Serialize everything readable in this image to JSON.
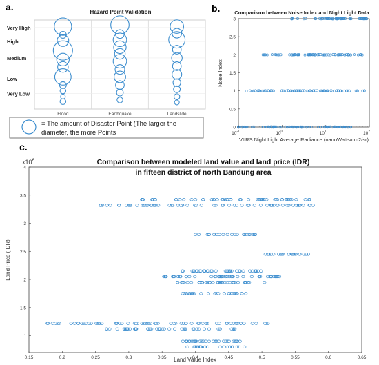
{
  "panel_labels": {
    "a": "a.",
    "b": "b.",
    "c": "c."
  },
  "chart_data": [
    {
      "type": "bubble",
      "title": "Hazard Point Validation",
      "categories": [
        "Flood",
        "Earthquake",
        "Landslide"
      ],
      "y_levels": [
        "Very Low",
        "Low",
        "Medium",
        "High",
        "Very High"
      ],
      "grid": true,
      "color": "#3f8fcf",
      "bubbles": [
        {
          "category": "Flood",
          "y": 5.0,
          "size": 0.9
        },
        {
          "category": "Flood",
          "y": 4.5,
          "size": 0.35
        },
        {
          "category": "Flood",
          "y": 4.15,
          "size": 0.6
        },
        {
          "category": "Flood",
          "y": 3.55,
          "size": 1.0
        },
        {
          "category": "Flood",
          "y": 3.0,
          "size": 0.65
        },
        {
          "category": "Flood",
          "y": 2.55,
          "size": 0.55
        },
        {
          "category": "Flood",
          "y": 1.95,
          "size": 0.85
        },
        {
          "category": "Flood",
          "y": 1.45,
          "size": 0.35
        },
        {
          "category": "Flood",
          "y": 1.1,
          "size": 0.3
        },
        {
          "category": "Flood",
          "y": 0.75,
          "size": 0.25
        },
        {
          "category": "Flood",
          "y": 0.45,
          "size": 0.3
        },
        {
          "category": "Earthquake",
          "y": 5.1,
          "size": 0.95
        },
        {
          "category": "Earthquake",
          "y": 4.55,
          "size": 0.45
        },
        {
          "category": "Earthquake",
          "y": 4.2,
          "size": 0.7
        },
        {
          "category": "Earthquake",
          "y": 3.75,
          "size": 0.65
        },
        {
          "category": "Earthquake",
          "y": 3.35,
          "size": 0.55
        },
        {
          "category": "Earthquake",
          "y": 2.9,
          "size": 0.7
        },
        {
          "category": "Earthquake",
          "y": 2.4,
          "size": 0.5
        },
        {
          "category": "Earthquake",
          "y": 1.95,
          "size": 0.6
        },
        {
          "category": "Earthquake",
          "y": 1.45,
          "size": 0.45
        },
        {
          "category": "Earthquake",
          "y": 1.0,
          "size": 0.35
        },
        {
          "category": "Earthquake",
          "y": 0.55,
          "size": 0.3
        },
        {
          "category": "Landslide",
          "y": 5.0,
          "size": 0.7
        },
        {
          "category": "Landslide",
          "y": 4.6,
          "size": 0.5
        },
        {
          "category": "Landslide",
          "y": 4.2,
          "size": 0.85
        },
        {
          "category": "Landslide",
          "y": 3.6,
          "size": 0.45
        },
        {
          "category": "Landslide",
          "y": 3.1,
          "size": 0.55
        },
        {
          "category": "Landslide",
          "y": 2.6,
          "size": 0.45
        },
        {
          "category": "Landslide",
          "y": 2.1,
          "size": 0.5
        },
        {
          "category": "Landslide",
          "y": 1.6,
          "size": 0.4
        },
        {
          "category": "Landslide",
          "y": 1.2,
          "size": 0.35
        },
        {
          "category": "Landslide",
          "y": 0.75,
          "size": 0.3
        },
        {
          "category": "Landslide",
          "y": 0.4,
          "size": 0.25
        }
      ],
      "legend": {
        "line1": "= The amount of Disaster Point (The larger the",
        "line2": "diameter, the more Points"
      }
    },
    {
      "type": "scatter",
      "title": "Comparison between Noise Index and Night Light Data",
      "xlabel": "VIIRS Night Light Average Radiance (nanoWatts/cm2/sr)",
      "ylabel": "Noise Index",
      "xscale": "log",
      "xlim": [
        0.1,
        100
      ],
      "ylim": [
        0,
        3
      ],
      "xticks": [
        {
          "value": 0.1,
          "base": "10",
          "exp": "-1"
        },
        {
          "value": 1,
          "base": "10",
          "exp": "0"
        },
        {
          "value": 10,
          "base": "10",
          "exp": "1"
        },
        {
          "value": 100,
          "base": "10",
          "exp": "2"
        }
      ],
      "yticks": [
        "0",
        "0.5",
        "1",
        "1.5",
        "2",
        "2.5",
        "3"
      ],
      "color": "#3f8fcf",
      "grid": false,
      "series": [
        {
          "y": 3,
          "x_min": 1.5,
          "x_max": 90,
          "dense_from": 6,
          "count": 60
        },
        {
          "y": 2,
          "x_min": 0.3,
          "x_max": 70,
          "dense_from": 1.5,
          "count": 65
        },
        {
          "y": 1,
          "x_min": 0.15,
          "x_max": 80,
          "dense_from": 0.5,
          "count": 75
        },
        {
          "y": 0,
          "x_min": 0.1,
          "x_max": 40,
          "dense_from": 0.1,
          "count": 110
        }
      ]
    },
    {
      "type": "scatter",
      "title": "Comparison between modeled land value and land price (IDR)",
      "subtitle": "in fifteen district of north Bandung area",
      "xlabel": "Land Value Index",
      "ylabel": "Land Price (IDR)",
      "multiplier_base": "x10",
      "multiplier_exp": "6",
      "xlim": [
        0.15,
        0.65
      ],
      "ylim": [
        0.7,
        4.0
      ],
      "xticks": [
        "0.15",
        "0.2",
        "0.25",
        "0.3",
        "0.35",
        "0.4",
        "0.45",
        "0.5",
        "0.55",
        "0.6",
        "0.65"
      ],
      "yticks": [
        "1",
        "1.5",
        "2",
        "2.5",
        "3",
        "3.5",
        "4"
      ],
      "color": "#3f8fcf",
      "grid": false,
      "series": [
        {
          "y": 3.42,
          "x_min": 0.31,
          "x_max": 0.575,
          "count": 55
        },
        {
          "y": 3.32,
          "x_min": 0.255,
          "x_max": 0.58,
          "count": 70
        },
        {
          "y": 2.8,
          "x_min": 0.4,
          "x_max": 0.49,
          "count": 22
        },
        {
          "y": 2.45,
          "x_min": 0.505,
          "x_max": 0.57,
          "count": 28
        },
        {
          "y": 2.15,
          "x_min": 0.38,
          "x_max": 0.5,
          "count": 35
        },
        {
          "y": 2.05,
          "x_min": 0.35,
          "x_max": 0.54,
          "count": 45
        },
        {
          "y": 1.95,
          "x_min": 0.37,
          "x_max": 0.51,
          "count": 40
        },
        {
          "y": 1.75,
          "x_min": 0.38,
          "x_max": 0.49,
          "count": 30
        },
        {
          "y": 1.22,
          "x_min": 0.175,
          "x_max": 0.51,
          "count": 70
        },
        {
          "y": 1.12,
          "x_min": 0.26,
          "x_max": 0.46,
          "count": 45
        },
        {
          "y": 0.9,
          "x_min": 0.38,
          "x_max": 0.47,
          "count": 30
        },
        {
          "y": 0.8,
          "x_min": 0.38,
          "x_max": 0.485,
          "count": 25
        }
      ]
    }
  ]
}
